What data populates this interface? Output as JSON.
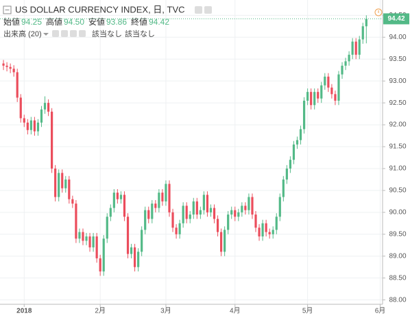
{
  "header": {
    "title": "US DOLLAR CURRENCY INDEX, 日, TVC",
    "ohlc": [
      {
        "label": "始値",
        "value": "94.25"
      },
      {
        "label": "高値",
        "value": "94.50"
      },
      {
        "label": "安値",
        "value": "93.86"
      },
      {
        "label": "終値",
        "value": "94.42"
      }
    ],
    "volume_label": "出来高 (20)",
    "volume_values": [
      "該当なし",
      "該当なし"
    ]
  },
  "chart_data": {
    "type": "candlestick",
    "up_color": "#53b987",
    "down_color": "#eb4d5c",
    "grid": true,
    "xlim": [
      -1,
      109.7
    ],
    "xticks": [
      {
        "value": 6,
        "label": "2018"
      },
      {
        "value": 28,
        "label": "2月"
      },
      {
        "value": 47,
        "label": "3月"
      },
      {
        "value": 67,
        "label": "4月"
      },
      {
        "value": 88,
        "label": "5月"
      },
      {
        "value": 109,
        "label": "6月"
      }
    ],
    "ylim": [
      87.9,
      94.85
    ],
    "yticks": [
      {
        "value": 88,
        "label": "88.00"
      },
      {
        "value": 88.5,
        "label": "88.50"
      },
      {
        "value": 89,
        "label": "89.00"
      },
      {
        "value": 89.5,
        "label": "89.50"
      },
      {
        "value": 90,
        "label": "90.00"
      },
      {
        "value": 90.5,
        "label": "90.50"
      },
      {
        "value": 91,
        "label": "91.00"
      },
      {
        "value": 91.5,
        "label": "91.50"
      },
      {
        "value": 92,
        "label": "92.00"
      },
      {
        "value": 92.5,
        "label": "92.50"
      },
      {
        "value": 93,
        "label": "93.00"
      },
      {
        "value": 93.5,
        "label": "93.50"
      },
      {
        "value": 94,
        "label": "94.00"
      },
      {
        "value": 94.5,
        "label": "94.50"
      }
    ],
    "open": [
      93.4,
      93.35,
      93.32,
      93.28,
      93.2,
      92.62,
      92.15,
      92.05,
      91.88,
      92.1,
      91.85,
      92.05,
      92.35,
      92.5,
      92.3,
      91.0,
      90.35,
      90.9,
      90.55,
      90.75,
      90.3,
      90.2,
      89.4,
      89.55,
      89.35,
      89.45,
      89.2,
      89.45,
      88.95,
      88.65,
      89.4,
      89.9,
      90.1,
      90.45,
      90.3,
      90.4,
      89.9,
      89.05,
      89.2,
      88.75,
      89.1,
      89.6,
      90.05,
      89.85,
      90.2,
      90.1,
      90.45,
      90.25,
      90.65,
      90.0,
      89.65,
      89.5,
      89.75,
      90.15,
      89.85,
      89.95,
      90.25,
      89.95,
      90.05,
      90.4,
      90.0,
      90.1,
      89.85,
      89.55,
      89.1,
      89.6,
      89.95,
      90.05,
      89.9,
      90.0,
      90.15,
      90.05,
      90.35,
      89.95,
      89.65,
      89.45,
      89.75,
      89.55,
      89.5,
      89.6,
      89.9,
      90.35,
      90.75,
      91.0,
      91.2,
      91.55,
      91.65,
      91.9,
      92.55,
      92.75,
      92.45,
      92.75,
      92.6,
      92.9,
      93.1,
      92.85,
      92.7,
      92.55,
      93.15,
      93.35,
      93.45,
      93.6,
      93.9,
      93.6,
      93.95,
      94.25
    ],
    "high": [
      93.48,
      93.43,
      93.4,
      93.36,
      93.28,
      92.7,
      92.23,
      92.13,
      92.18,
      92.18,
      92.13,
      92.43,
      92.65,
      92.58,
      92.38,
      91.08,
      90.98,
      90.98,
      90.83,
      90.83,
      90.38,
      90.28,
      89.63,
      89.63,
      89.53,
      89.53,
      89.53,
      89.53,
      89.03,
      89.48,
      89.98,
      90.18,
      90.53,
      90.53,
      90.48,
      90.48,
      89.98,
      89.28,
      89.28,
      89.18,
      89.68,
      90.13,
      90.13,
      90.28,
      90.28,
      90.53,
      90.53,
      90.73,
      90.73,
      90.08,
      89.73,
      89.83,
      90.23,
      90.23,
      90.03,
      90.33,
      90.33,
      90.13,
      90.48,
      90.48,
      90.18,
      90.18,
      89.93,
      89.63,
      89.68,
      90.03,
      90.13,
      90.13,
      90.08,
      90.23,
      90.23,
      90.43,
      90.43,
      90.03,
      89.73,
      89.83,
      89.83,
      89.63,
      89.68,
      89.98,
      90.43,
      90.83,
      91.08,
      91.28,
      91.63,
      91.73,
      91.98,
      92.63,
      92.83,
      92.83,
      92.83,
      92.83,
      92.98,
      93.18,
      93.18,
      92.93,
      92.78,
      93.23,
      93.43,
      93.53,
      93.68,
      93.98,
      93.98,
      94.03,
      94.33,
      94.5
    ],
    "low": [
      93.25,
      93.22,
      93.18,
      93.1,
      92.52,
      92.05,
      91.95,
      91.78,
      91.78,
      91.75,
      91.75,
      91.95,
      92.25,
      92.2,
      90.9,
      90.25,
      90.25,
      90.45,
      90.45,
      90.2,
      90.1,
      89.3,
      89.3,
      89.25,
      89.25,
      89.1,
      89.1,
      88.85,
      88.55,
      88.55,
      89.3,
      89.8,
      90.0,
      90.2,
      90.2,
      89.8,
      88.95,
      88.95,
      88.65,
      88.65,
      89.0,
      89.5,
      89.75,
      89.75,
      90.0,
      90.0,
      90.15,
      90.15,
      89.9,
      89.55,
      89.4,
      89.4,
      89.65,
      89.75,
      89.75,
      89.85,
      89.85,
      89.85,
      89.95,
      89.9,
      89.9,
      89.75,
      89.45,
      89.0,
      89.0,
      89.5,
      89.85,
      89.8,
      89.8,
      89.9,
      89.95,
      89.95,
      89.85,
      89.55,
      89.35,
      89.35,
      89.45,
      89.4,
      89.4,
      89.5,
      89.8,
      90.25,
      90.65,
      90.9,
      91.1,
      91.45,
      91.55,
      91.8,
      92.45,
      92.35,
      92.35,
      92.5,
      92.5,
      92.8,
      92.75,
      92.6,
      92.45,
      92.45,
      93.05,
      93.25,
      93.35,
      93.5,
      93.5,
      93.5,
      93.85,
      93.86
    ],
    "close": [
      93.35,
      93.32,
      93.28,
      93.2,
      92.62,
      92.15,
      92.05,
      91.88,
      92.1,
      91.85,
      92.05,
      92.35,
      92.5,
      92.3,
      91.0,
      90.35,
      90.9,
      90.55,
      90.75,
      90.3,
      90.2,
      89.4,
      89.55,
      89.35,
      89.45,
      89.2,
      89.45,
      88.95,
      88.65,
      89.4,
      89.9,
      90.1,
      90.45,
      90.3,
      90.4,
      89.9,
      89.05,
      89.2,
      88.75,
      89.1,
      89.6,
      90.05,
      89.85,
      90.2,
      90.1,
      90.45,
      90.25,
      90.65,
      90.0,
      89.65,
      89.5,
      89.75,
      90.15,
      89.85,
      89.95,
      90.25,
      89.95,
      90.05,
      90.4,
      90.0,
      90.1,
      89.85,
      89.55,
      89.1,
      89.6,
      89.95,
      90.05,
      89.9,
      90.0,
      90.15,
      90.05,
      90.35,
      89.95,
      89.65,
      89.45,
      89.75,
      89.55,
      89.5,
      89.6,
      89.9,
      90.35,
      90.75,
      91.0,
      91.2,
      91.55,
      91.65,
      91.9,
      92.55,
      92.75,
      92.45,
      92.75,
      92.6,
      92.9,
      93.1,
      92.85,
      92.7,
      92.55,
      93.15,
      93.35,
      93.45,
      93.6,
      93.9,
      93.6,
      93.95,
      94.25,
      94.42
    ]
  }
}
